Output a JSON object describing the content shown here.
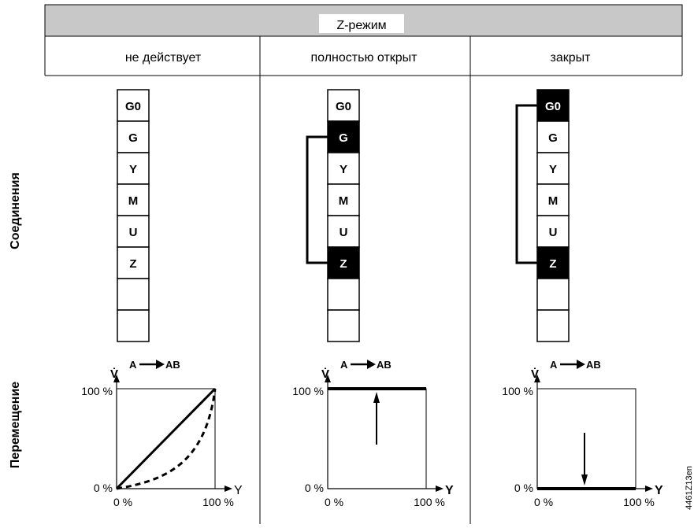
{
  "header": {
    "title": "Z-режим",
    "columns": [
      "не действует",
      "полностью открыт",
      "закрыт"
    ]
  },
  "row_labels": {
    "connections": "Соединения",
    "movement": "Перемещение"
  },
  "terminals": [
    "G0",
    "G",
    "Y",
    "M",
    "U",
    "Z",
    "",
    ""
  ],
  "columns": [
    {
      "name": "не действует",
      "highlighted": [],
      "link": null,
      "graph": {
        "flow_label": "A",
        "flow_target": "AB",
        "y_axis_symbol": "V̇",
        "y_top": "100 %",
        "y_bottom": "0 %",
        "x_left": "0 %",
        "x_right": "100 %",
        "x_axis_symbol": "Y",
        "curves": [
          "linear",
          "equal-percentage"
        ]
      }
    },
    {
      "name": "полностью открыт",
      "highlighted": [
        "G",
        "Z"
      ],
      "link": [
        "G",
        "Z"
      ],
      "graph": {
        "flow_label": "A",
        "flow_target": "AB",
        "y_axis_symbol": "V̇",
        "y_top": "100 %",
        "y_bottom": "0 %",
        "x_left": "0 %",
        "x_right": "100 %",
        "x_axis_symbol": "Y",
        "curves": [
          "constant-100"
        ]
      }
    },
    {
      "name": "закрыт",
      "highlighted": [
        "G0",
        "Z"
      ],
      "link": [
        "G0",
        "Z"
      ],
      "graph": {
        "flow_label": "A",
        "flow_target": "AB",
        "y_axis_symbol": "V̇",
        "y_top": "100 %",
        "y_bottom": "0 %",
        "x_left": "0 %",
        "x_right": "100 %",
        "x_axis_symbol": "Y",
        "curves": [
          "constant-0"
        ]
      }
    }
  ],
  "figure_id": "4461Z13en",
  "colors": {
    "header_bg": "#c8c8c8",
    "highlight": "#000000",
    "line": "#000000"
  }
}
